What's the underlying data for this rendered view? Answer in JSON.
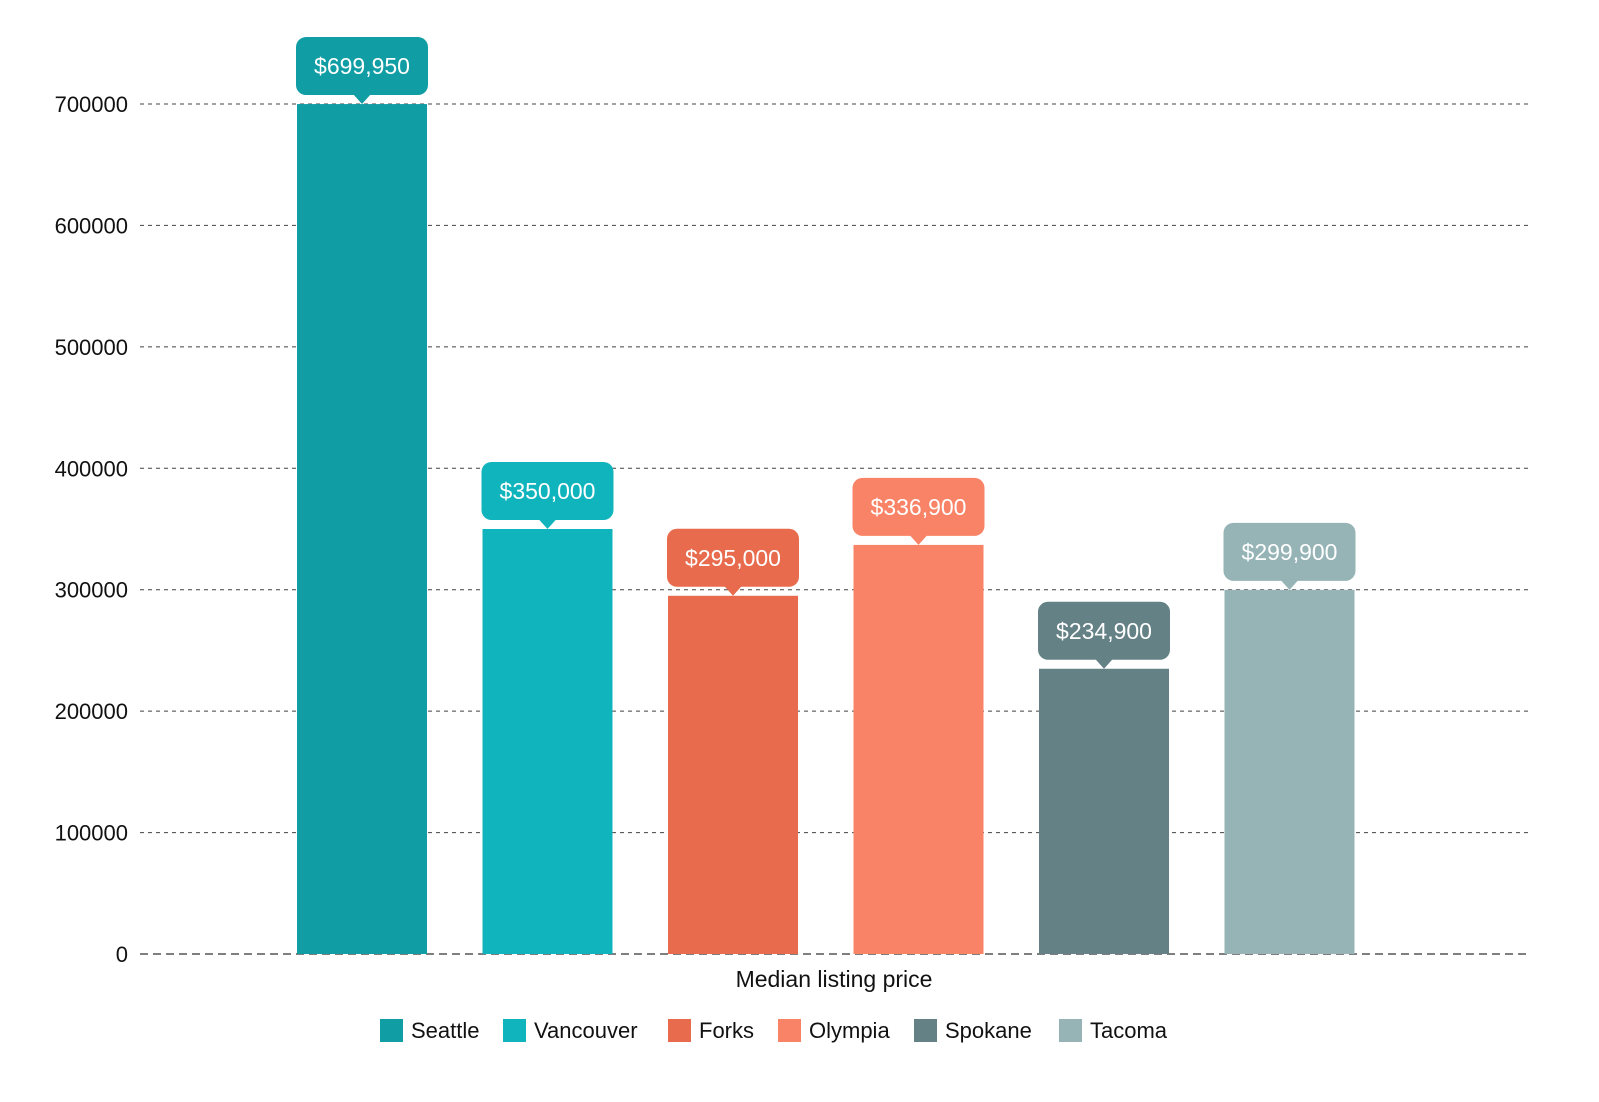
{
  "chart_data": {
    "type": "bar",
    "x_category": "Median listing price",
    "ylim": [
      0,
      700000
    ],
    "yticks": [
      0,
      100000,
      200000,
      300000,
      400000,
      500000,
      600000,
      700000
    ],
    "grid": true,
    "legend_position": "bottom",
    "series": [
      {
        "name": "Seattle",
        "value": 699950,
        "label": "$699,950",
        "color": "#119DA4"
      },
      {
        "name": "Vancouver",
        "value": 350000,
        "label": "$350,000",
        "color": "#10B4BD"
      },
      {
        "name": "Forks",
        "value": 295000,
        "label": "$295,000",
        "color": "#E76B4C"
      },
      {
        "name": "Olympia",
        "value": 336900,
        "label": "$336,900",
        "color": "#F98366"
      },
      {
        "name": "Spokane",
        "value": 234900,
        "label": "$234,900",
        "color": "#648186"
      },
      {
        "name": "Tacoma",
        "value": 299900,
        "label": "$299,900",
        "color": "#96B3B6"
      }
    ]
  }
}
